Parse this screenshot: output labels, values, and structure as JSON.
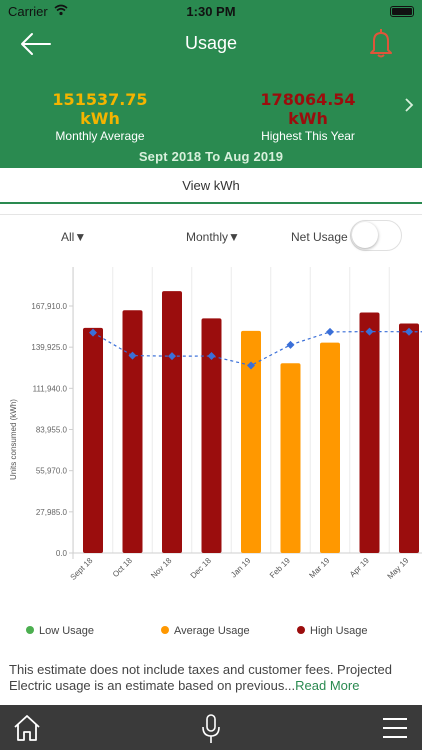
{
  "status_bar": {
    "carrier": "Carrier",
    "time": "1:30 PM"
  },
  "header": {
    "title": "Usage",
    "monthly_average": {
      "value": "151537.75 kWh",
      "label": "Monthly Average",
      "color": "#f4b400"
    },
    "highest": {
      "value": "178064.54 kWh",
      "label": "Highest This Year",
      "color": "#9b0d0d"
    },
    "date_range": "Sept 2018 To Aug 2019",
    "background": "#2a8a50"
  },
  "view_toggle": {
    "label": "View kWh"
  },
  "filters": {
    "category": "All▼",
    "period": "Monthly▼",
    "net_usage_label": "Net Usage",
    "net_usage_on": false
  },
  "legend": [
    {
      "label": "Low Usage",
      "color": "#4caf50"
    },
    {
      "label": "Average Usage",
      "color": "#ff9800"
    },
    {
      "label": "High Usage",
      "color": "#9b0d0d"
    }
  ],
  "disclaimer": {
    "text": "This estimate does not include taxes and customer fees. Projected Electric usage is an estimate based on previous...",
    "link": "Read More"
  },
  "tabbar": {
    "icons": [
      "home-icon",
      "microphone-icon",
      "menu-icon"
    ]
  },
  "chart_data": {
    "type": "bar",
    "ylabel": "Units consumed (kWh)",
    "ylim": [
      0,
      167910
    ],
    "yticks": [
      0,
      27985,
      55970,
      83955,
      111940,
      139925,
      167910
    ],
    "ytick_labels": [
      "0.0",
      "27,985.0",
      "55,970.0",
      "83,955.0",
      "111,940.0",
      "139,925.0",
      "167,910.0"
    ],
    "categories": [
      "Sept 18",
      "Oct 18",
      "Nov 18",
      "Dec 18",
      "Jan 19",
      "Feb 19",
      "Mar 19",
      "Apr 19",
      "May 19"
    ],
    "values": [
      153000,
      165000,
      178000,
      159500,
      151000,
      129000,
      143000,
      163500,
      156000
    ],
    "bar_levels": [
      "high",
      "high",
      "high",
      "high",
      "average",
      "average",
      "average",
      "high",
      "high"
    ],
    "level_colors": {
      "low": "#4caf50",
      "average": "#ff9800",
      "high": "#9b0d0d"
    },
    "average_line": {
      "values": [
        149800,
        134200,
        133800,
        133900,
        127500,
        141500,
        150300,
        150500,
        150400,
        150400
      ],
      "color": "#3a6fd8"
    },
    "grid": "vertical"
  }
}
